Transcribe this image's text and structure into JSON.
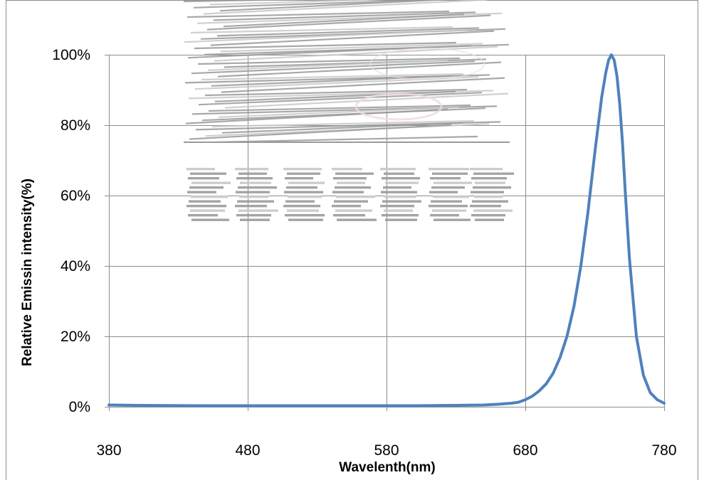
{
  "chart_data": {
    "type": "line",
    "title": "",
    "xlabel": "Wavelenth(nm)",
    "ylabel": "Relative Emissin intensity(%)",
    "xlim": [
      380,
      780
    ],
    "ylim": [
      0,
      1
    ],
    "x_ticks": [
      380,
      480,
      580,
      680,
      780
    ],
    "x_tick_labels": [
      "380",
      "480",
      "580",
      "680",
      "780"
    ],
    "y_ticks": [
      0,
      0.2,
      0.4,
      0.6,
      0.8,
      1.0
    ],
    "y_tick_labels": [
      "0%",
      "20%",
      "40%",
      "60%",
      "80%",
      "100%"
    ],
    "grid": true,
    "legend": "none",
    "series": [
      {
        "color": "#4f81bd",
        "x": [
          380,
          400,
          450,
          500,
          550,
          600,
          630,
          650,
          660,
          670,
          675,
          680,
          685,
          690,
          695,
          700,
          705,
          710,
          715,
          720,
          725,
          730,
          735,
          738,
          740,
          742,
          744,
          746,
          748,
          750,
          752,
          755,
          760,
          765,
          770,
          775,
          780
        ],
        "y": [
          0.005,
          0.004,
          0.003,
          0.003,
          0.003,
          0.003,
          0.004,
          0.005,
          0.007,
          0.01,
          0.013,
          0.02,
          0.03,
          0.045,
          0.065,
          0.095,
          0.14,
          0.2,
          0.285,
          0.4,
          0.55,
          0.72,
          0.88,
          0.95,
          0.985,
          1.0,
          0.985,
          0.94,
          0.86,
          0.75,
          0.61,
          0.42,
          0.2,
          0.09,
          0.04,
          0.02,
          0.01
        ]
      }
    ]
  },
  "watermark": {
    "colors": [
      "#9a9a9a",
      "#c8c8c8",
      "#f0d8e8"
    ]
  }
}
